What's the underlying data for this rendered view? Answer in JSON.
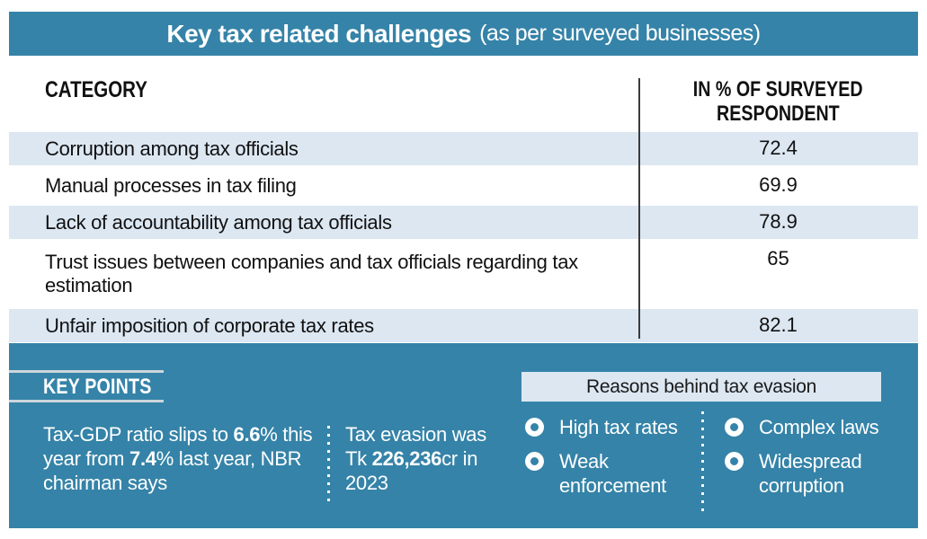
{
  "colors": {
    "accent_blue": "#3583a8",
    "row_light_blue": "#dce7f2",
    "divider_dark": "#3a3a3a",
    "text_dark": "#111111",
    "text_white": "#ffffff"
  },
  "header": {
    "title": "Key tax related challenges",
    "subtitle": "(as per surveyed businesses)"
  },
  "table": {
    "category_header": "CATEGORY",
    "value_header_line1": "IN % OF SURVEYED",
    "value_header_line2": "RESPONDENT",
    "rows": [
      {
        "category": "Corruption among tax officials",
        "value": "72.4"
      },
      {
        "category": "Manual processes in tax filing",
        "value": "69.9"
      },
      {
        "category": "Lack of accountability among tax officials",
        "value": "78.9"
      },
      {
        "category": "Trust issues between companies and tax officials regarding tax estimation",
        "value": "65"
      },
      {
        "category": "Unfair imposition of corporate tax rates",
        "value": "82.1"
      }
    ]
  },
  "key_points": {
    "heading": "KEY POINTS",
    "point1": {
      "t1": "Tax-GDP ratio slips to ",
      "b1": "6.6",
      "t2": "% this year from ",
      "b2": "7.4",
      "t3": "% last year, NBR chairman says"
    },
    "point2": {
      "t1": "Tax evasion was Tk ",
      "b1": "226,236",
      "t2": "cr in 2023"
    }
  },
  "reasons": {
    "heading": "Reasons behind tax evasion",
    "items": [
      "High tax rates",
      "Complex laws",
      "Weak enforcement",
      "Widespread corruption"
    ]
  },
  "chart_data": {
    "type": "table",
    "title": "Key tax related challenges (as per surveyed businesses)",
    "columns": [
      "Category",
      "In % of surveyed respondent"
    ],
    "categories": [
      "Corruption among tax officials",
      "Manual processes in tax filing",
      "Lack of accountability among tax officials",
      "Trust issues between companies and tax officials regarding tax estimation",
      "Unfair imposition of corporate tax rates"
    ],
    "values": [
      72.4,
      69.9,
      78.9,
      65,
      82.1
    ],
    "annotations": [
      "Tax-GDP ratio slips to 6.6% this year from 7.4% last year, NBR chairman says",
      "Tax evasion was Tk 226,236cr in 2023",
      "Reasons behind tax evasion: High tax rates, Weak enforcement, Complex laws, Widespread corruption"
    ]
  }
}
